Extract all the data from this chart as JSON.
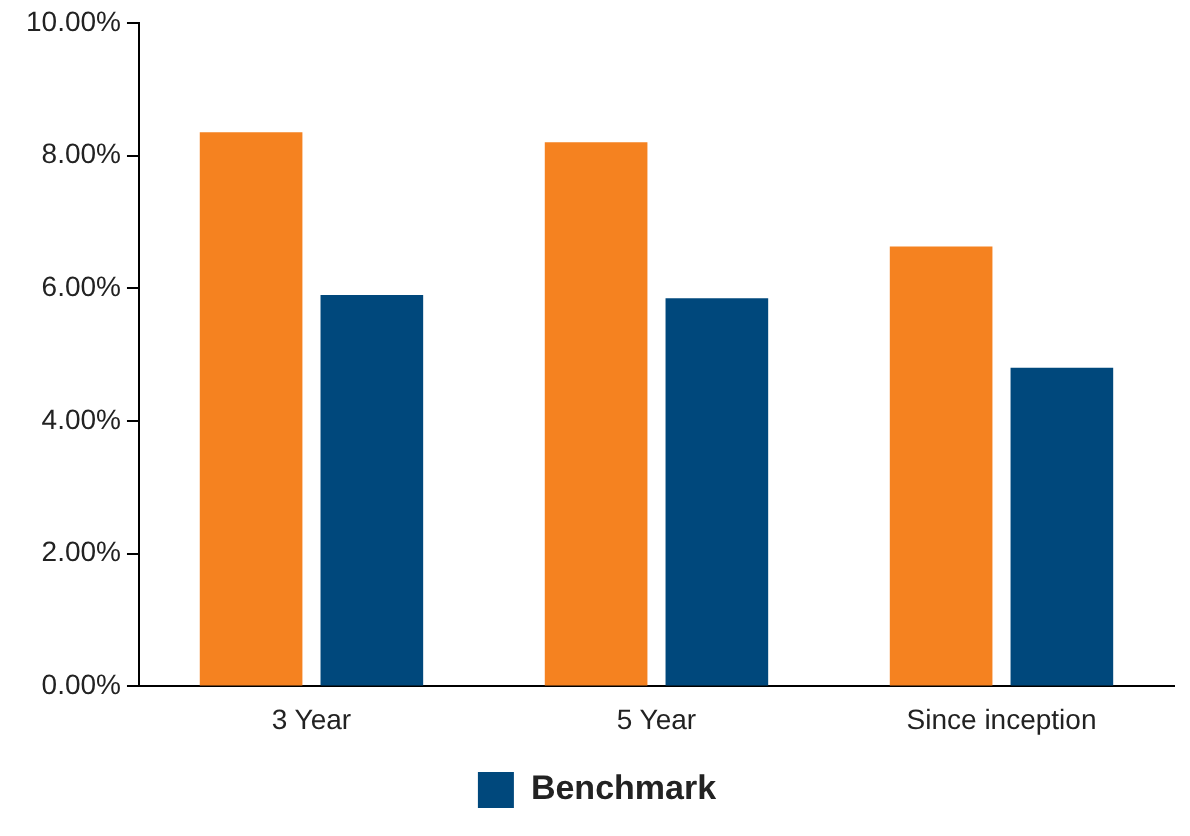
{
  "chart_data": {
    "type": "bar",
    "categories": [
      "3 Year",
      "5 Year",
      "Since inception"
    ],
    "series": [
      {
        "color": "#f58220",
        "values": [
          8.35,
          8.2,
          6.63
        ]
      },
      {
        "name": "Benchmark",
        "color": "#00487c",
        "values": [
          5.9,
          5.85,
          4.8
        ]
      }
    ],
    "ylim": [
      0,
      10
    ],
    "yticks": [
      {
        "value": 0,
        "label": "0.00%"
      },
      {
        "value": 2,
        "label": "2.00%"
      },
      {
        "value": 4,
        "label": "4.00%"
      },
      {
        "value": 6,
        "label": "6.00%"
      },
      {
        "value": 8,
        "label": "8.00%"
      },
      {
        "value": 10,
        "label": "10.00%"
      }
    ],
    "grid": false,
    "legend": "bottom"
  }
}
